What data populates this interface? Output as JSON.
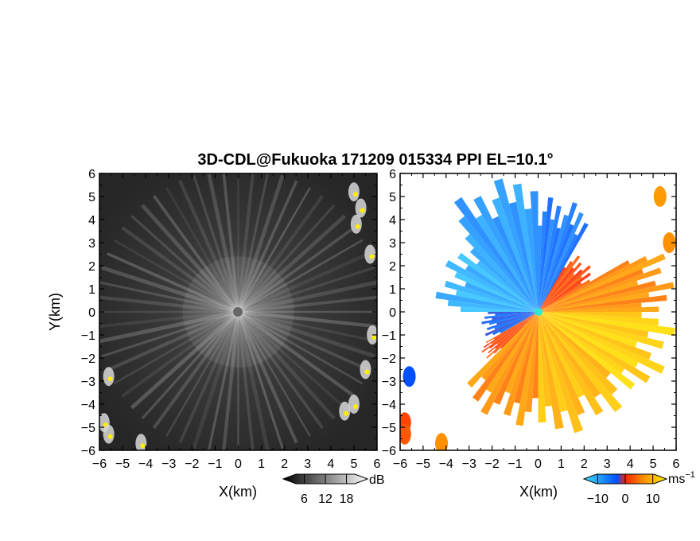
{
  "title": "3D-CDL@Fukuoka 171209 015334 PPI EL=10.1°",
  "chart_data": [
    {
      "type": "heatmap",
      "panel": "left",
      "quantity_label": "dB",
      "xlabel": "X(km)",
      "ylabel": "Y(km)",
      "xlim": [
        -6,
        6
      ],
      "ylim": [
        -6,
        6
      ],
      "x_ticks": [
        -6,
        -5,
        -4,
        -3,
        -2,
        -1,
        0,
        1,
        2,
        3,
        4,
        5,
        6
      ],
      "y_ticks": [
        -6,
        -5,
        -4,
        -3,
        -2,
        -1,
        0,
        1,
        2,
        3,
        4,
        5,
        6
      ],
      "colorbar": {
        "unit": "dB",
        "ticks": [
          "6",
          "12",
          "18"
        ],
        "range": [
          0,
          24
        ],
        "colors": [
          "#000000",
          "#ffffff"
        ]
      },
      "echo_patches": [
        {
          "x": 5.0,
          "y": 5.2
        },
        {
          "x": 5.3,
          "y": 4.5
        },
        {
          "x": 5.1,
          "y": 3.8
        },
        {
          "x": 5.7,
          "y": 2.5
        },
        {
          "x": 5.8,
          "y": -1.0
        },
        {
          "x": 5.5,
          "y": -2.5
        },
        {
          "x": 5.0,
          "y": -4.0
        },
        {
          "x": 4.6,
          "y": -4.3
        },
        {
          "x": -5.8,
          "y": -4.8
        },
        {
          "x": -5.6,
          "y": -5.3
        },
        {
          "x": -4.2,
          "y": -5.7
        },
        {
          "x": -5.6,
          "y": -2.8
        }
      ]
    },
    {
      "type": "heatmap",
      "panel": "right",
      "quantity_label": "Doppler velocity",
      "xlabel": "X(km)",
      "xlim": [
        -6,
        6
      ],
      "ylim": [
        -6,
        6
      ],
      "x_ticks": [
        -6,
        -5,
        -4,
        -3,
        -2,
        -1,
        0,
        1,
        2,
        3,
        4,
        5,
        6
      ],
      "y_ticks": [
        -6,
        -5,
        -4,
        -3,
        -2,
        -1,
        0,
        1,
        2,
        3,
        4,
        5,
        6
      ],
      "colorbar": {
        "unit": "ms",
        "unit_exp": "−1",
        "ticks": [
          "−10",
          "0",
          "10"
        ],
        "range": [
          -15,
          15
        ],
        "colors": [
          "#40e0ff",
          "#0050ff",
          "#ff2000",
          "#ff9000",
          "#ffee00"
        ]
      },
      "sectors": [
        {
          "az_from": 315,
          "az_to": 360,
          "max_range_km": 6.0,
          "velocity_ms": -9
        },
        {
          "az_from": 0,
          "az_to": 30,
          "max_range_km": 5.0,
          "velocity_ms": -6
        },
        {
          "az_from": 270,
          "az_to": 315,
          "max_range_km": 4.5,
          "velocity_ms": -11
        },
        {
          "az_from": 240,
          "az_to": 270,
          "max_range_km": 2.5,
          "velocity_ms": -4
        },
        {
          "az_from": 30,
          "az_to": 60,
          "max_range_km": 3.0,
          "velocity_ms": 2
        },
        {
          "az_from": 60,
          "az_to": 90,
          "max_range_km": 6.0,
          "velocity_ms": 6
        },
        {
          "az_from": 90,
          "az_to": 130,
          "max_range_km": 6.0,
          "velocity_ms": 12
        },
        {
          "az_from": 130,
          "az_to": 180,
          "max_range_km": 5.5,
          "velocity_ms": 10
        },
        {
          "az_from": 180,
          "az_to": 225,
          "max_range_km": 5.0,
          "velocity_ms": 6
        },
        {
          "az_from": 225,
          "az_to": 240,
          "max_range_km": 3.0,
          "velocity_ms": 2
        }
      ],
      "edge_echoes": [
        {
          "x": 5.3,
          "y": 5.0,
          "velocity_ms": 7
        },
        {
          "x": 5.7,
          "y": 3.0,
          "velocity_ms": 6
        },
        {
          "x": -5.6,
          "y": -2.8,
          "velocity_ms": -3
        },
        {
          "x": -5.8,
          "y": -4.8,
          "velocity_ms": 2
        },
        {
          "x": -5.8,
          "y": -5.3,
          "velocity_ms": 3
        },
        {
          "x": -4.2,
          "y": -5.7,
          "velocity_ms": 6
        }
      ]
    }
  ]
}
